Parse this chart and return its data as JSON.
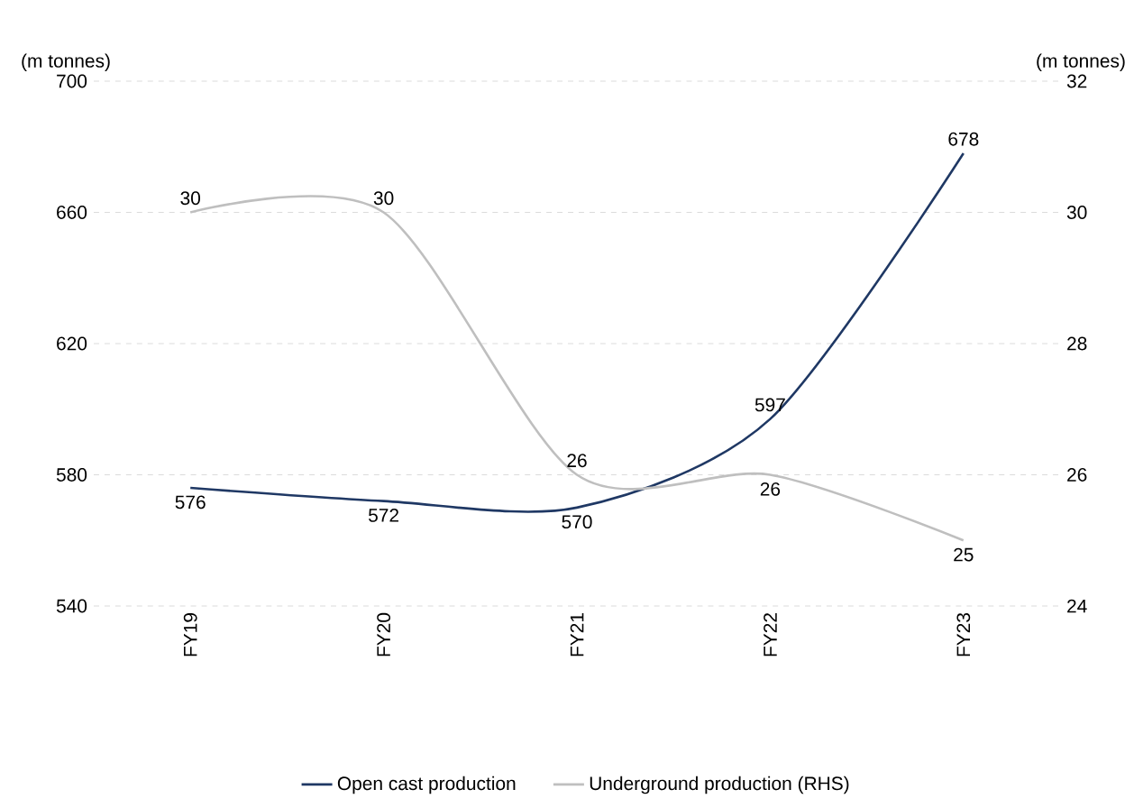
{
  "chart_data": {
    "type": "line",
    "categories": [
      "FY19",
      "FY20",
      "FY21",
      "FY22",
      "FY23"
    ],
    "ylabel": "(m tonnes)",
    "y2label": "(m tonnes)",
    "ylim": [
      540,
      700
    ],
    "yticks": [
      540,
      580,
      620,
      660,
      700
    ],
    "y2lim": [
      24,
      32
    ],
    "y2ticks": [
      24,
      26,
      28,
      30,
      32
    ],
    "grid": "y",
    "legend": "bottom",
    "data_labels": true,
    "marker": "none",
    "line_style": "solid",
    "series": [
      {
        "name": "Open cast production",
        "color": "#1f3864",
        "values": [
          576,
          572,
          570,
          597,
          678
        ]
      },
      {
        "name": "Underground production (RHS)",
        "color": "#bfbfbf",
        "axis": "y2",
        "values": [
          30,
          30,
          26,
          26,
          25
        ]
      }
    ]
  }
}
